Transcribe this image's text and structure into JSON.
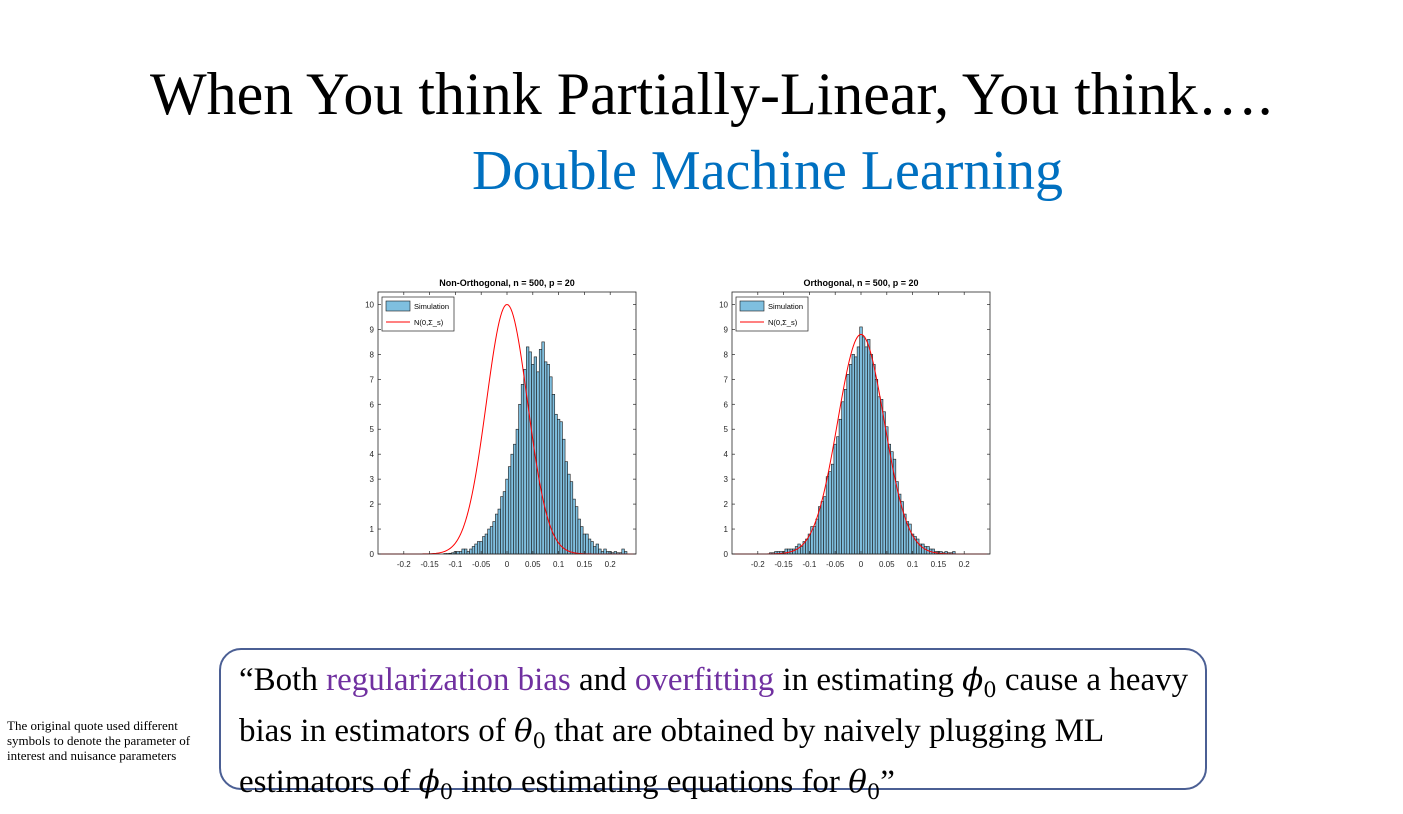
{
  "slide": {
    "title": "When You think Partially-Linear, You think….",
    "subtitle": "Double Machine Learning",
    "footnote": "The original quote used different symbols to denote the parameter of interest and nuisance parameters",
    "quote": {
      "part1": "“Both ",
      "hl1": "regularization bias",
      "part2": " and ",
      "hl2": "overfitting",
      "part3": " in estimating ",
      "sym_phi": "ϕ",
      "sub_0": "0",
      "part4": " cause a heavy bias in estimators of ",
      "sym_theta": "θ",
      "part5": " that are obtained by naively plugging ML estimators of ",
      "part6": " into estimating equations for ",
      "part7": "”"
    },
    "colors": {
      "title": "#000000",
      "subtitle": "#0070c0",
      "highlight": "#7030a0",
      "box_border": "#4b5f94",
      "bars": "#7fbfdf",
      "normal_curve": "#ff0000"
    }
  },
  "chart_data": [
    {
      "type": "bar",
      "title": "Non-Orthogonal, n = 500, p = 20",
      "xlim": [
        -0.25,
        0.25
      ],
      "ylim": [
        0,
        10.5
      ],
      "xticks": [
        "-0.2",
        "-0.15",
        "-0.1",
        "-0.05",
        "0",
        "0.05",
        "0.1",
        "0.15",
        "0.2"
      ],
      "yticks": [
        "0",
        "1",
        "2",
        "3",
        "4",
        "5",
        "6",
        "7",
        "8",
        "9",
        "10"
      ],
      "legend": {
        "position": "top-left",
        "entries": [
          "Simulation",
          "N(0,Σ_s)"
        ]
      },
      "histogram": {
        "bin_width": 0.005,
        "centers": [
          -0.12,
          -0.115,
          -0.11,
          -0.105,
          -0.1,
          -0.095,
          -0.09,
          -0.085,
          -0.08,
          -0.075,
          -0.07,
          -0.065,
          -0.06,
          -0.055,
          -0.05,
          -0.045,
          -0.04,
          -0.035,
          -0.03,
          -0.025,
          -0.02,
          -0.015,
          -0.01,
          -0.005,
          0,
          0.005,
          0.01,
          0.015,
          0.02,
          0.025,
          0.03,
          0.035,
          0.04,
          0.045,
          0.05,
          0.055,
          0.06,
          0.065,
          0.07,
          0.075,
          0.08,
          0.085,
          0.09,
          0.095,
          0.1,
          0.105,
          0.11,
          0.115,
          0.12,
          0.125,
          0.13,
          0.135,
          0.14,
          0.145,
          0.15,
          0.155,
          0.16,
          0.165,
          0.17,
          0.175,
          0.18,
          0.185,
          0.19,
          0.195,
          0.2,
          0.205,
          0.21,
          0.215,
          0.22,
          0.225,
          0.23
        ],
        "values": [
          0.02,
          0.02,
          0.03,
          0.05,
          0.1,
          0.1,
          0.1,
          0.2,
          0.2,
          0.1,
          0.2,
          0.3,
          0.4,
          0.5,
          0.5,
          0.7,
          0.8,
          1,
          1.1,
          1.3,
          1.6,
          1.8,
          2.3,
          2.5,
          3,
          3.5,
          4,
          4.4,
          5,
          6,
          6.8,
          7.4,
          8.3,
          8.1,
          7.6,
          7.9,
          7.3,
          8.2,
          8.5,
          7.7,
          7.6,
          7.1,
          6.4,
          5.6,
          5.4,
          5.3,
          4.6,
          3.7,
          3.2,
          2.9,
          2.2,
          1.9,
          1.4,
          1.1,
          0.8,
          0.8,
          0.6,
          0.5,
          0.3,
          0.4,
          0.2,
          0.1,
          0.2,
          0.1,
          0.1,
          0.05,
          0.1,
          0.05,
          0.05,
          0.2,
          0.1
        ]
      },
      "normal_curve": {
        "mean": 0,
        "peak": 10,
        "sd": 0.04
      }
    },
    {
      "type": "bar",
      "title": "Orthogonal, n = 500, p = 20",
      "xlim": [
        -0.25,
        0.25
      ],
      "ylim": [
        0,
        10.5
      ],
      "xticks": [
        "-0.2",
        "-0.15",
        "-0.1",
        "-0.05",
        "0",
        "0.05",
        "0.1",
        "0.15",
        "0.2"
      ],
      "yticks": [
        "0",
        "1",
        "2",
        "3",
        "4",
        "5",
        "6",
        "7",
        "8",
        "9",
        "10"
      ],
      "legend": {
        "position": "top-left",
        "entries": [
          "Simulation",
          "N(0,Σ_s)"
        ]
      },
      "histogram": {
        "bin_width": 0.005,
        "centers": [
          -0.175,
          -0.17,
          -0.165,
          -0.16,
          -0.155,
          -0.15,
          -0.145,
          -0.14,
          -0.135,
          -0.13,
          -0.125,
          -0.12,
          -0.115,
          -0.11,
          -0.105,
          -0.1,
          -0.095,
          -0.09,
          -0.085,
          -0.08,
          -0.075,
          -0.07,
          -0.065,
          -0.06,
          -0.055,
          -0.05,
          -0.045,
          -0.04,
          -0.035,
          -0.03,
          -0.025,
          -0.02,
          -0.015,
          -0.01,
          -0.005,
          0,
          0.005,
          0.01,
          0.015,
          0.02,
          0.025,
          0.03,
          0.035,
          0.04,
          0.045,
          0.05,
          0.055,
          0.06,
          0.065,
          0.07,
          0.075,
          0.08,
          0.085,
          0.09,
          0.095,
          0.1,
          0.105,
          0.11,
          0.115,
          0.12,
          0.125,
          0.13,
          0.135,
          0.14,
          0.145,
          0.15,
          0.155,
          0.16,
          0.165,
          0.17,
          0.175,
          0.18
        ],
        "values": [
          0.05,
          0.05,
          0.1,
          0.1,
          0.1,
          0.1,
          0.2,
          0.2,
          0.2,
          0.2,
          0.3,
          0.4,
          0.3,
          0.5,
          0.6,
          0.8,
          1.1,
          1.1,
          1.4,
          1.9,
          2.1,
          2.3,
          3.1,
          3.3,
          3.6,
          4.4,
          4.7,
          5.4,
          6.1,
          6.6,
          7.2,
          7.6,
          8,
          7.9,
          8.3,
          9.1,
          8.7,
          8.3,
          8.6,
          8,
          7.6,
          7,
          6.3,
          6.2,
          5.7,
          5.1,
          4.4,
          4.1,
          3.8,
          2.9,
          2.4,
          2.1,
          1.6,
          1.3,
          1.2,
          0.8,
          0.7,
          0.6,
          0.4,
          0.4,
          0.3,
          0.3,
          0.2,
          0.2,
          0.1,
          0.1,
          0.1,
          0.05,
          0.1,
          0.05,
          0.05,
          0.1
        ]
      },
      "normal_curve": {
        "mean": 0,
        "peak": 8.8,
        "sd": 0.045
      }
    }
  ]
}
